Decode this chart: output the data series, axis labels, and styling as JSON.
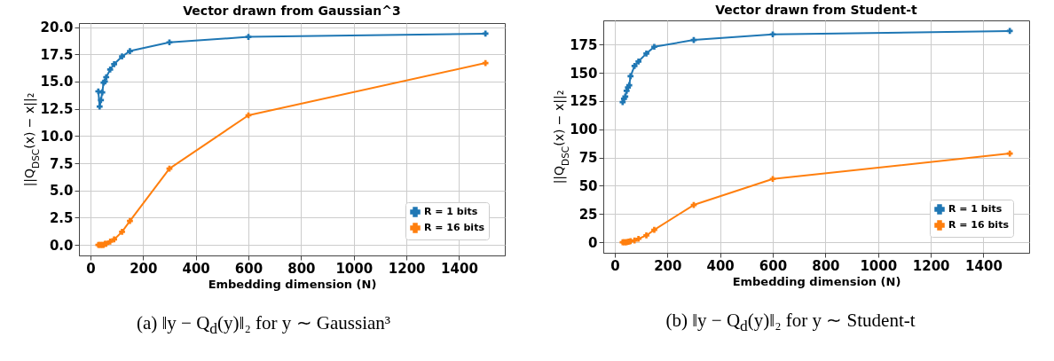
{
  "chart_data": [
    {
      "type": "line",
      "title": "Vector drawn from Gaussian^3",
      "xlabel": "Embedding dimension (N)",
      "ylabel": "||Q$_{DSC}$(x) − x||₂",
      "x": [
        30,
        35,
        40,
        45,
        50,
        55,
        60,
        75,
        90,
        120,
        150,
        300,
        600,
        1500
      ],
      "series": [
        {
          "name": "R = 1 bits",
          "color": "#1f77b4",
          "values": [
            14.1,
            12.7,
            13.3,
            14.0,
            14.9,
            15.0,
            15.4,
            16.1,
            16.6,
            17.3,
            17.8,
            18.6,
            19.1,
            19.4
          ]
        },
        {
          "name": "R = 16 bits",
          "color": "#ff7f0e",
          "values": [
            0,
            0,
            0,
            0,
            0,
            0.1,
            0.1,
            0.3,
            0.5,
            1.2,
            2.2,
            7.0,
            11.9,
            16.7
          ]
        }
      ],
      "xlim": [
        -43.5,
        1573.5
      ],
      "ylim": [
        -0.97,
        20.37
      ],
      "xticks": [
        0,
        200,
        400,
        600,
        800,
        1000,
        1200,
        1400
      ],
      "yticks": [
        {
          "value": 0,
          "label": "0.0"
        },
        {
          "value": 2.5,
          "label": "2.5"
        },
        {
          "value": 5,
          "label": "5.0"
        },
        {
          "value": 7.5,
          "label": "7.5"
        },
        {
          "value": 10,
          "label": "10.0"
        },
        {
          "value": 12.5,
          "label": "12.5"
        },
        {
          "value": 15,
          "label": "15.0"
        },
        {
          "value": 17.5,
          "label": "17.5"
        },
        {
          "value": 20,
          "label": "20.0"
        }
      ],
      "grid": true,
      "legend": "bottom right",
      "marker": "cross",
      "line_style": "solid",
      "annotations": [
        "(a) ‖y − Q$_{d}$(y)‖₂ for y ∼ Gaussian³"
      ]
    },
    {
      "type": "line",
      "title": "Vector drawn from Student-t",
      "xlabel": "Embedding dimension (N)",
      "ylabel": "||Q$_{DSC}$(x) − x||₂",
      "x": [
        30,
        35,
        40,
        45,
        50,
        55,
        60,
        75,
        90,
        120,
        150,
        300,
        600,
        1500
      ],
      "series": [
        {
          "name": "R = 1 bits",
          "color": "#1f77b4",
          "values": [
            124,
            127,
            129,
            134,
            137,
            139,
            147,
            156,
            160,
            167,
            173,
            179,
            184,
            187
          ]
        },
        {
          "name": "R = 16 bits",
          "color": "#ff7f0e",
          "values": [
            0,
            0,
            0,
            0,
            0.3,
            0.5,
            1,
            1.5,
            3,
            6,
            11,
            33,
            56,
            78.5
          ]
        }
      ],
      "xlim": [
        -43.5,
        1573.5
      ],
      "ylim": [
        -9.35,
        196.35
      ],
      "xticks": [
        0,
        200,
        400,
        600,
        800,
        1000,
        1200,
        1400
      ],
      "yticks": [
        0,
        25,
        50,
        75,
        100,
        125,
        150,
        175
      ],
      "grid": true,
      "legend": "bottom right",
      "marker": "cross",
      "line_style": "solid",
      "annotations": [
        "(b) ‖y − Q$_{d}$(y)‖₂ for y ∼ Student-t"
      ]
    }
  ]
}
